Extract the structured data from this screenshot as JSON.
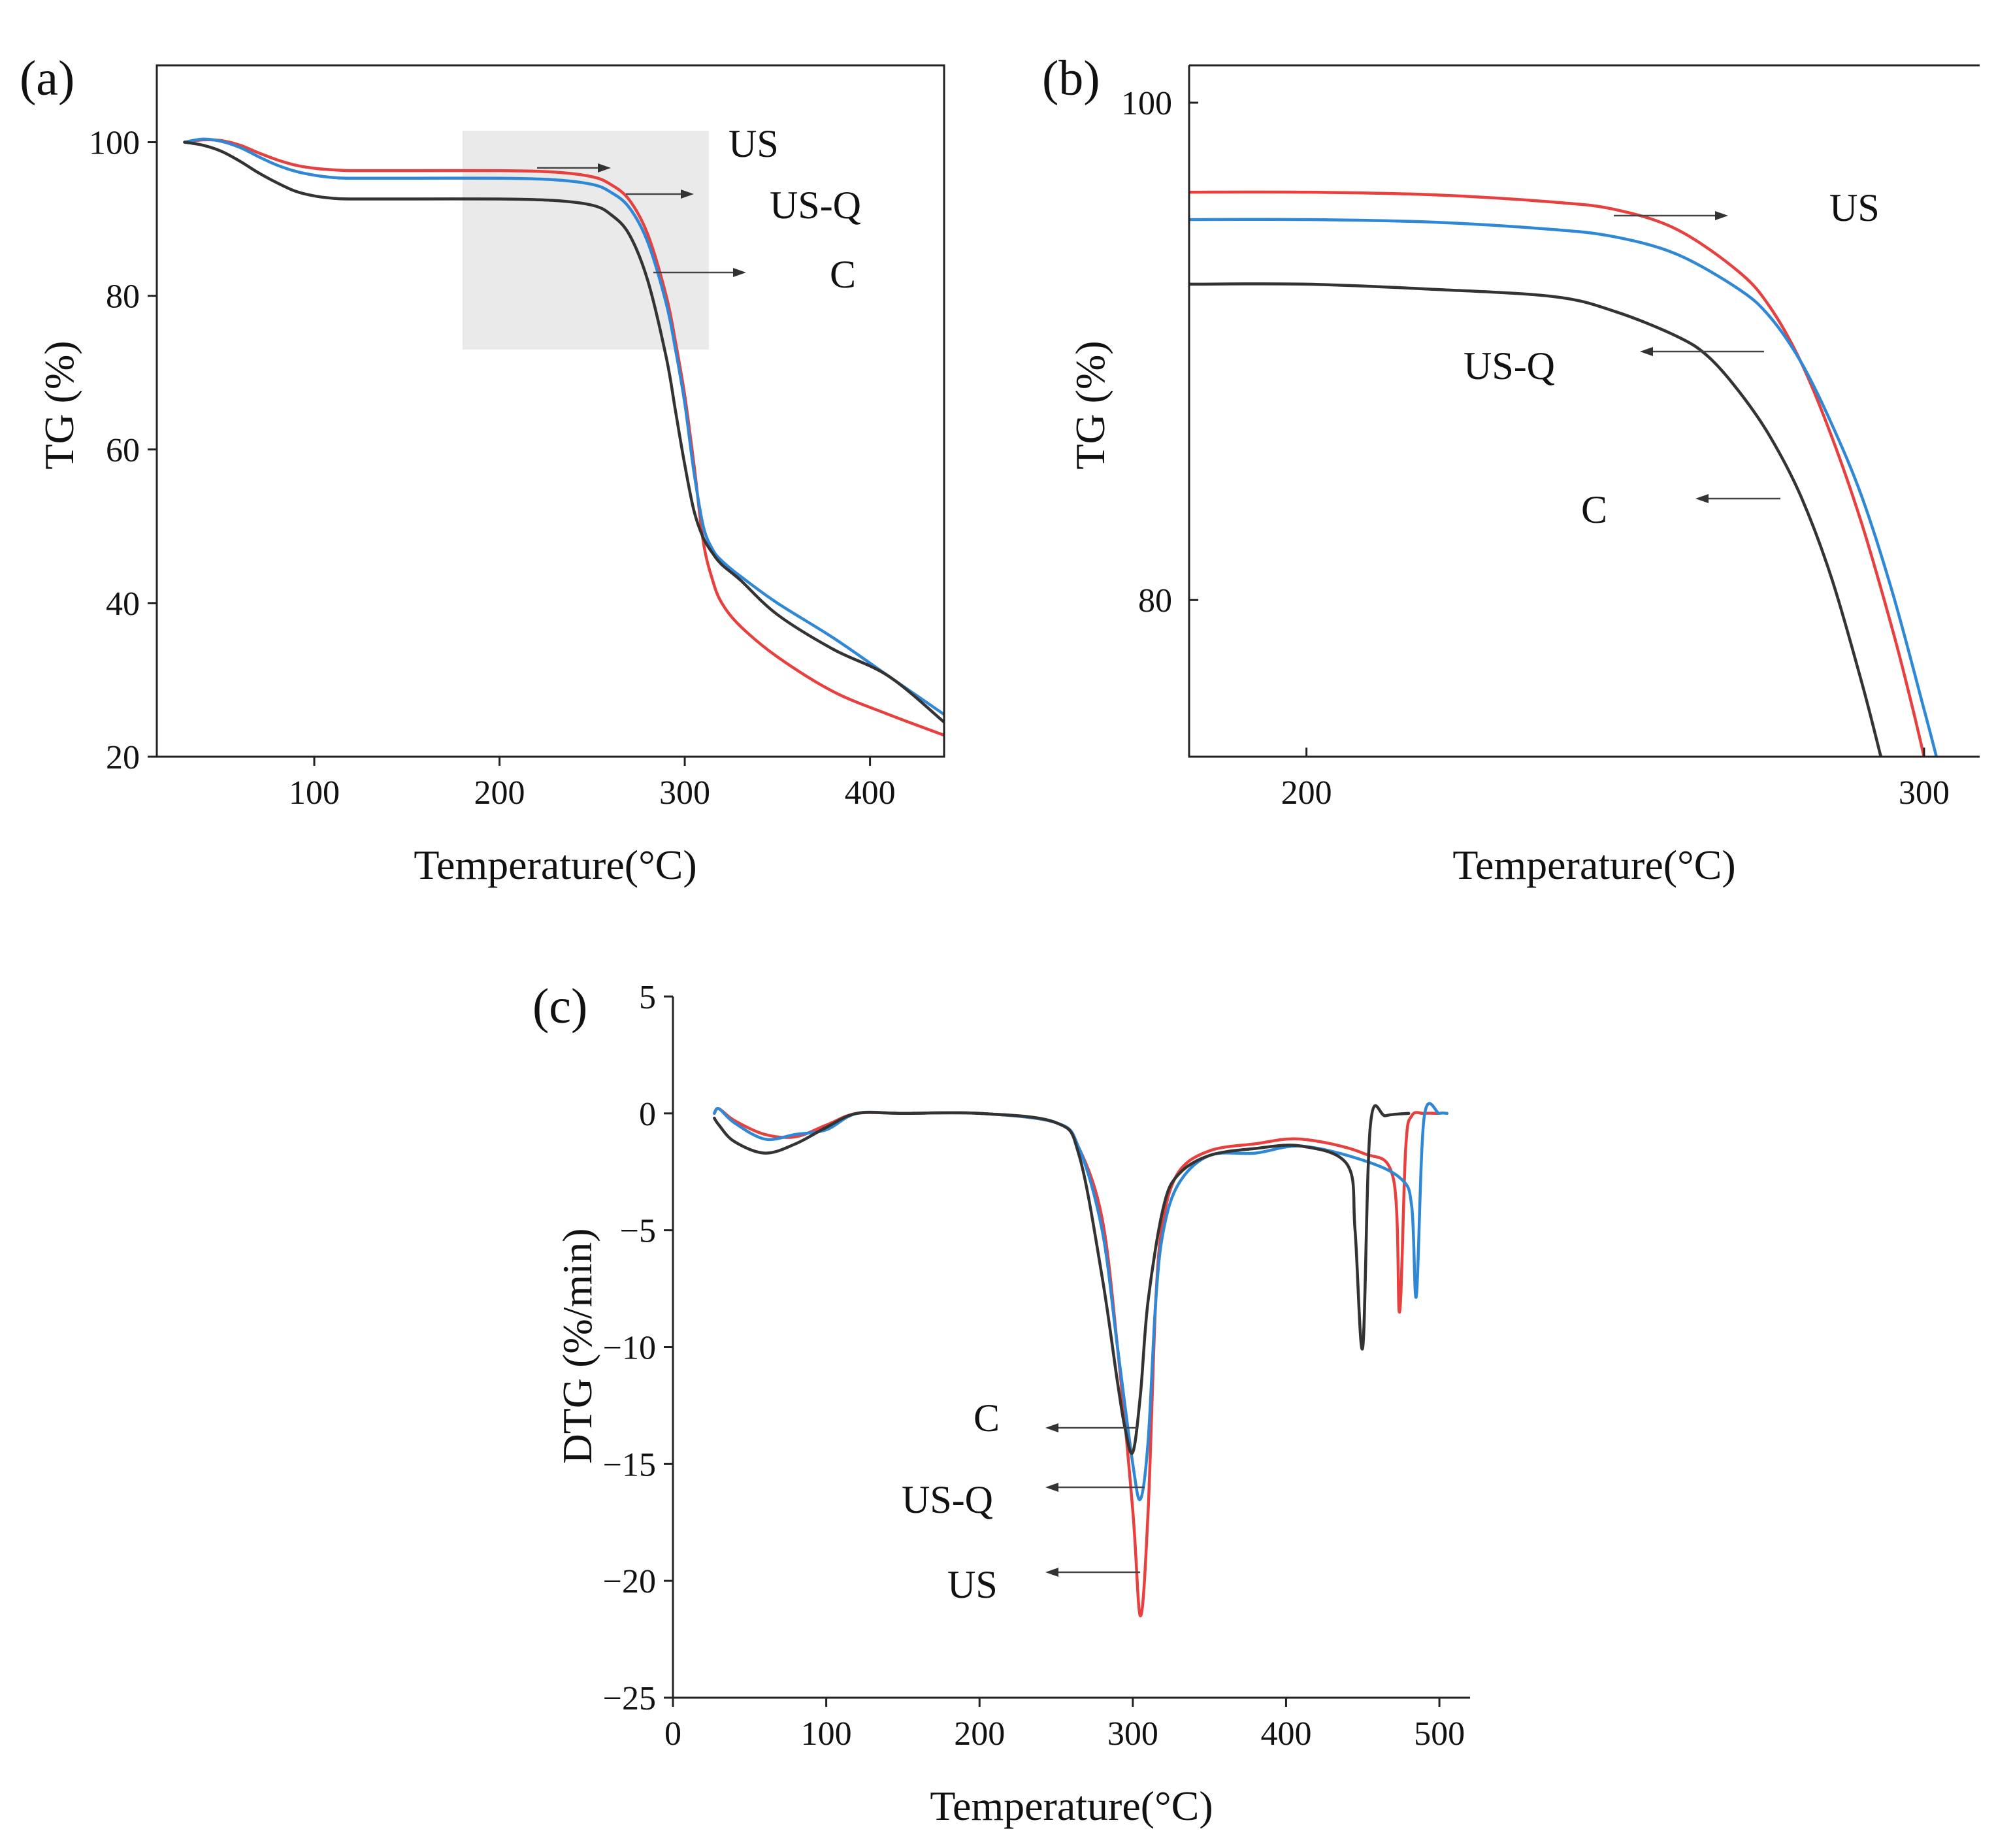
{
  "colors": {
    "US": "#e8403f",
    "US-Q": "#2f88d6",
    "C": "#333333",
    "zoom_box": "#d9d9d9"
  },
  "chart_data": [
    {
      "id": "a",
      "panel_label": "(a)",
      "type": "line",
      "xlabel": "Temperature(°C)",
      "ylabel": "TG (%)",
      "xlim": [
        15,
        440
      ],
      "ylim": [
        20,
        110
      ],
      "xticks": [
        100,
        200,
        300,
        400
      ],
      "xtick_labels": [
        "100",
        "200",
        "300",
        "400"
      ],
      "yticks": [
        20,
        40,
        60,
        80,
        100
      ],
      "ytick_labels": [
        "20",
        "40",
        "60",
        "80",
        "100"
      ],
      "zoom_region": {
        "x": [
          180,
          313
        ],
        "y": [
          73,
          101.5
        ]
      },
      "series": [
        {
          "name": "US",
          "x": [
            30,
            40,
            50,
            60,
            70,
            80,
            90,
            100,
            110,
            120,
            150,
            200,
            230,
            250,
            260,
            270,
            280,
            290,
            295,
            300,
            305,
            310,
            315,
            320,
            330,
            350,
            380,
            410,
            440
          ],
          "y": [
            100,
            100.3,
            100.2,
            99.6,
            98.6,
            97.7,
            97.0,
            96.6,
            96.4,
            96.3,
            96.3,
            96.3,
            96.1,
            95.5,
            94.5,
            92.5,
            88,
            80,
            74,
            67,
            58,
            48,
            43,
            40,
            37,
            33,
            28.5,
            25.5,
            22.8
          ]
        },
        {
          "name": "US-Q",
          "x": [
            30,
            40,
            50,
            60,
            70,
            80,
            90,
            100,
            110,
            120,
            150,
            200,
            230,
            250,
            260,
            270,
            280,
            290,
            295,
            300,
            305,
            310,
            315,
            320,
            330,
            350,
            380,
            410,
            440
          ],
          "y": [
            100,
            100.4,
            100.1,
            99.3,
            98.1,
            97.0,
            96.2,
            95.7,
            95.4,
            95.3,
            95.3,
            95.3,
            95.1,
            94.5,
            93.5,
            91.5,
            87,
            79,
            73,
            66,
            57,
            50,
            47,
            45.5,
            43.5,
            40,
            35.5,
            30.5,
            25.5
          ]
        },
        {
          "name": "C",
          "x": [
            30,
            40,
            50,
            60,
            70,
            80,
            90,
            100,
            110,
            120,
            150,
            200,
            230,
            250,
            260,
            270,
            280,
            290,
            295,
            300,
            305,
            310,
            315,
            320,
            330,
            350,
            380,
            410,
            440
          ],
          "y": [
            100,
            99.6,
            98.8,
            97.5,
            96.0,
            94.7,
            93.6,
            93.0,
            92.7,
            92.6,
            92.6,
            92.6,
            92.4,
            91.8,
            90.6,
            88,
            82,
            72,
            65,
            58,
            52,
            48.5,
            46.5,
            45,
            43,
            38.5,
            34,
            30.5,
            24.5
          ]
        }
      ],
      "annotations": [
        {
          "label": "US",
          "series": "US"
        },
        {
          "label": "US-Q",
          "series": "US-Q"
        },
        {
          "label": "C",
          "series": "C"
        }
      ]
    },
    {
      "id": "b",
      "panel_label": "(b)",
      "type": "line",
      "xlabel": "Temperature(°C)",
      "ylabel": "TG (%)",
      "xlim": [
        181,
        309
      ],
      "ylim": [
        73.7,
        101.5
      ],
      "xticks": [
        200,
        300
      ],
      "xtick_labels": [
        "200",
        "300"
      ],
      "yticks": [
        80,
        100
      ],
      "ytick_labels": [
        "80",
        "100"
      ],
      "series": [
        {
          "name": "US",
          "x": [
            181,
            200,
            220,
            240,
            250,
            260,
            270,
            275,
            280,
            285,
            290,
            295,
            298,
            300
          ],
          "y": [
            96.4,
            96.4,
            96.3,
            96.0,
            95.7,
            94.9,
            93.2,
            91.8,
            89.6,
            86.6,
            83.0,
            78.7,
            75.8,
            73.7
          ]
        },
        {
          "name": "US-Q",
          "x": [
            181,
            200,
            220,
            240,
            250,
            260,
            270,
            275,
            280,
            285,
            290,
            295,
            300,
            302
          ],
          "y": [
            95.3,
            95.3,
            95.2,
            94.9,
            94.6,
            93.9,
            92.5,
            91.4,
            89.6,
            87.1,
            84.1,
            80.2,
            75.6,
            73.7
          ]
        },
        {
          "name": "C",
          "x": [
            181,
            200,
            220,
            240,
            250,
            260,
            265,
            270,
            275,
            280,
            285,
            290,
            293
          ],
          "y": [
            92.7,
            92.7,
            92.5,
            92.2,
            91.6,
            90.6,
            89.8,
            88.4,
            86.6,
            84.2,
            80.9,
            76.6,
            73.7
          ]
        }
      ],
      "annotations": [
        {
          "label": "US",
          "series": "US"
        },
        {
          "label": "US-Q",
          "series": "US-Q"
        },
        {
          "label": "C",
          "series": "C"
        }
      ]
    },
    {
      "id": "c",
      "panel_label": "(c)",
      "type": "line",
      "xlabel": "Temperature(°C)",
      "ylabel": "DTG (%/min)",
      "xlim": [
        0,
        520
      ],
      "ylim": [
        -25,
        5
      ],
      "xticks": [
        0,
        100,
        200,
        300,
        400,
        500
      ],
      "xtick_labels": [
        "0",
        "100",
        "200",
        "300",
        "400",
        "500"
      ],
      "yticks": [
        5,
        0,
        -5,
        -10,
        -15,
        -20,
        -25
      ],
      "ytick_labels": [
        "5",
        "0",
        "−5",
        "−10",
        "−15",
        "−20",
        "−25"
      ],
      "series": [
        {
          "name": "US",
          "x": [
            27,
            30,
            40,
            60,
            80,
            100,
            120,
            150,
            200,
            250,
            265,
            280,
            290,
            300,
            305,
            310,
            315,
            320,
            330,
            350,
            380,
            410,
            450,
            470,
            474,
            478,
            482,
            490,
            500
          ],
          "y": [
            0,
            0.2,
            -0.3,
            -0.9,
            -1.0,
            -0.5,
            0,
            0,
            0,
            -0.4,
            -1.5,
            -4.5,
            -10,
            -17,
            -21.5,
            -17,
            -8,
            -4.5,
            -2.5,
            -1.6,
            -1.3,
            -1.1,
            -1.7,
            -2.8,
            -8.5,
            -1.5,
            -0.1,
            0,
            0
          ]
        },
        {
          "name": "US-Q",
          "x": [
            27,
            30,
            40,
            60,
            80,
            100,
            120,
            150,
            200,
            250,
            265,
            280,
            290,
            300,
            305,
            310,
            315,
            320,
            330,
            350,
            380,
            410,
            450,
            475,
            482,
            485,
            490,
            500,
            505
          ],
          "y": [
            0,
            0.2,
            -0.4,
            -1.1,
            -0.9,
            -0.7,
            0,
            0,
            0,
            -0.4,
            -1.5,
            -5,
            -10,
            -15,
            -16.5,
            -14,
            -8,
            -5,
            -3,
            -1.8,
            -1.7,
            -1.4,
            -2.0,
            -2.8,
            -4.0,
            -7.8,
            -0.2,
            0,
            0
          ]
        },
        {
          "name": "C",
          "x": [
            27,
            30,
            40,
            60,
            80,
            100,
            120,
            150,
            200,
            250,
            265,
            280,
            290,
            295,
            300,
            305,
            310,
            320,
            330,
            350,
            380,
            410,
            440,
            445,
            450,
            455,
            465,
            480
          ],
          "y": [
            -0.2,
            -0.5,
            -1.2,
            -1.7,
            -1.3,
            -0.6,
            0,
            0,
            0,
            -0.4,
            -1.8,
            -7,
            -11.5,
            -13.5,
            -14.5,
            -12,
            -8,
            -4,
            -2.6,
            -1.8,
            -1.5,
            -1.4,
            -2.2,
            -5,
            -10,
            -0.5,
            -0.1,
            0
          ]
        }
      ],
      "annotations": [
        {
          "label": "C",
          "series": "C"
        },
        {
          "label": "US-Q",
          "series": "US-Q"
        },
        {
          "label": "US",
          "series": "US"
        }
      ]
    }
  ]
}
